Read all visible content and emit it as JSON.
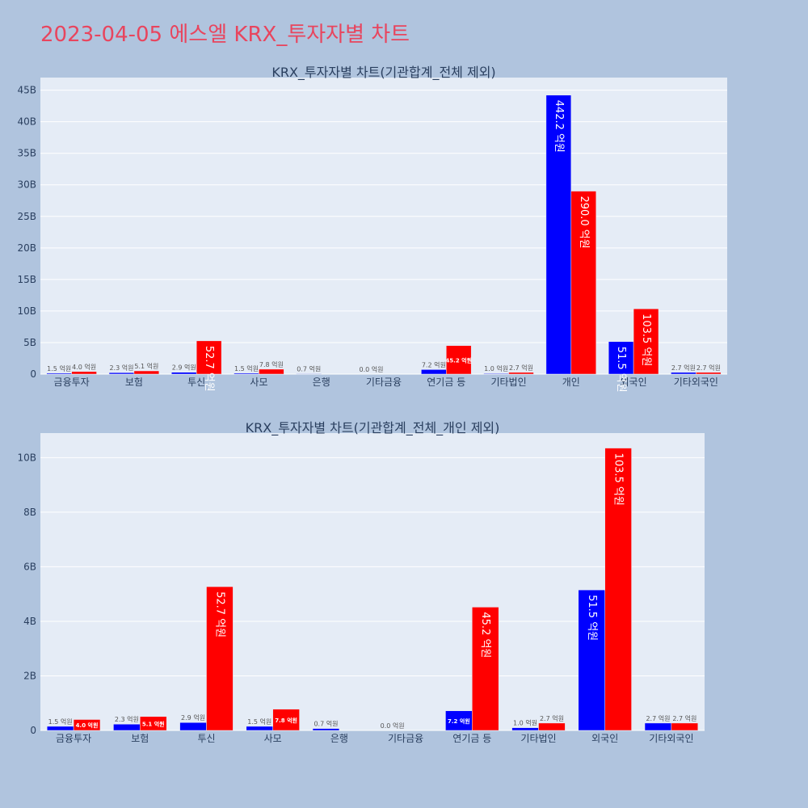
{
  "title": "2023-04-05 에스엘 KRX_투자자별 차트",
  "colors": {
    "buy": "#0000ff",
    "sell": "#ff0000",
    "plot_bg": "#e5ecf6",
    "page_bg": "#b0c4de",
    "title": "#e8455e"
  },
  "chart_data": [
    {
      "type": "bar",
      "title": "KRX_투자자별 차트(기관합계_전체 제외)",
      "categories": [
        "금융투자",
        "보험",
        "투신",
        "사모",
        "은행",
        "기타금융",
        "연기금 등",
        "기타법인",
        "개인",
        "외국인",
        "기타외국인"
      ],
      "ylim": [
        0,
        47000000000
      ],
      "yticks": [
        0,
        5000000000,
        10000000000,
        15000000000,
        20000000000,
        25000000000,
        30000000000,
        35000000000,
        40000000000,
        45000000000
      ],
      "ytick_labels": [
        "0",
        "5B",
        "10B",
        "15B",
        "20B",
        "25B",
        "30B",
        "35B",
        "40B",
        "45B"
      ],
      "series": [
        {
          "color": "#0000ff",
          "values": [
            150000000,
            230000000,
            290000000,
            150000000,
            70000000,
            0,
            720000000,
            100000000,
            44220000000,
            5150000000,
            270000000
          ],
          "labels": [
            "1.5 억원",
            "2.3 억원",
            "2.9 억원",
            "1.5 억원",
            "0.7 억원",
            "0.0 억원",
            "7.2 억원",
            "1.0 억원",
            "442.2 억원",
            "51.5 억원",
            "2.7 억원"
          ]
        },
        {
          "color": "#ff0000",
          "values": [
            400000000,
            510000000,
            5270000000,
            780000000,
            null,
            null,
            4520000000,
            270000000,
            29000000000,
            10350000000,
            270000000
          ],
          "labels": [
            "4.0 억원",
            "5.1 억원",
            "52.7 억원",
            "7.8 억원",
            "",
            "",
            "45.2 억원",
            "2.7 억원",
            "290.0 억원",
            "103.5 억원",
            "2.7 억원"
          ]
        }
      ]
    },
    {
      "type": "bar",
      "title": "KRX_투자자별 차트(기관합계_전체_개인 제외)",
      "categories": [
        "금융투자",
        "보험",
        "투신",
        "사모",
        "은행",
        "기타금융",
        "연기금 등",
        "기타법인",
        "외국인",
        "기타외국인"
      ],
      "ylim": [
        0,
        10900000000
      ],
      "yticks": [
        0,
        2000000000,
        4000000000,
        6000000000,
        8000000000,
        10000000000
      ],
      "ytick_labels": [
        "0",
        "2B",
        "4B",
        "6B",
        "8B",
        "10B"
      ],
      "series": [
        {
          "color": "#0000ff",
          "values": [
            150000000,
            230000000,
            290000000,
            150000000,
            70000000,
            0,
            720000000,
            100000000,
            5150000000,
            270000000
          ],
          "labels": [
            "1.5 억원",
            "2.3 억원",
            "2.9 억원",
            "1.5 억원",
            "0.7 억원",
            "0.0 억원",
            "7.2 억원",
            "1.0 억원",
            "51.5 억원",
            "2.7 억원"
          ]
        },
        {
          "color": "#ff0000",
          "values": [
            400000000,
            510000000,
            5270000000,
            780000000,
            null,
            null,
            4520000000,
            270000000,
            10350000000,
            270000000
          ],
          "labels": [
            "4.0 억원",
            "5.1 억원",
            "52.7 억원",
            "7.8 억원",
            "",
            "",
            "45.2 억원",
            "2.7 억원",
            "103.5 억원",
            "2.7 억원"
          ]
        }
      ]
    }
  ]
}
